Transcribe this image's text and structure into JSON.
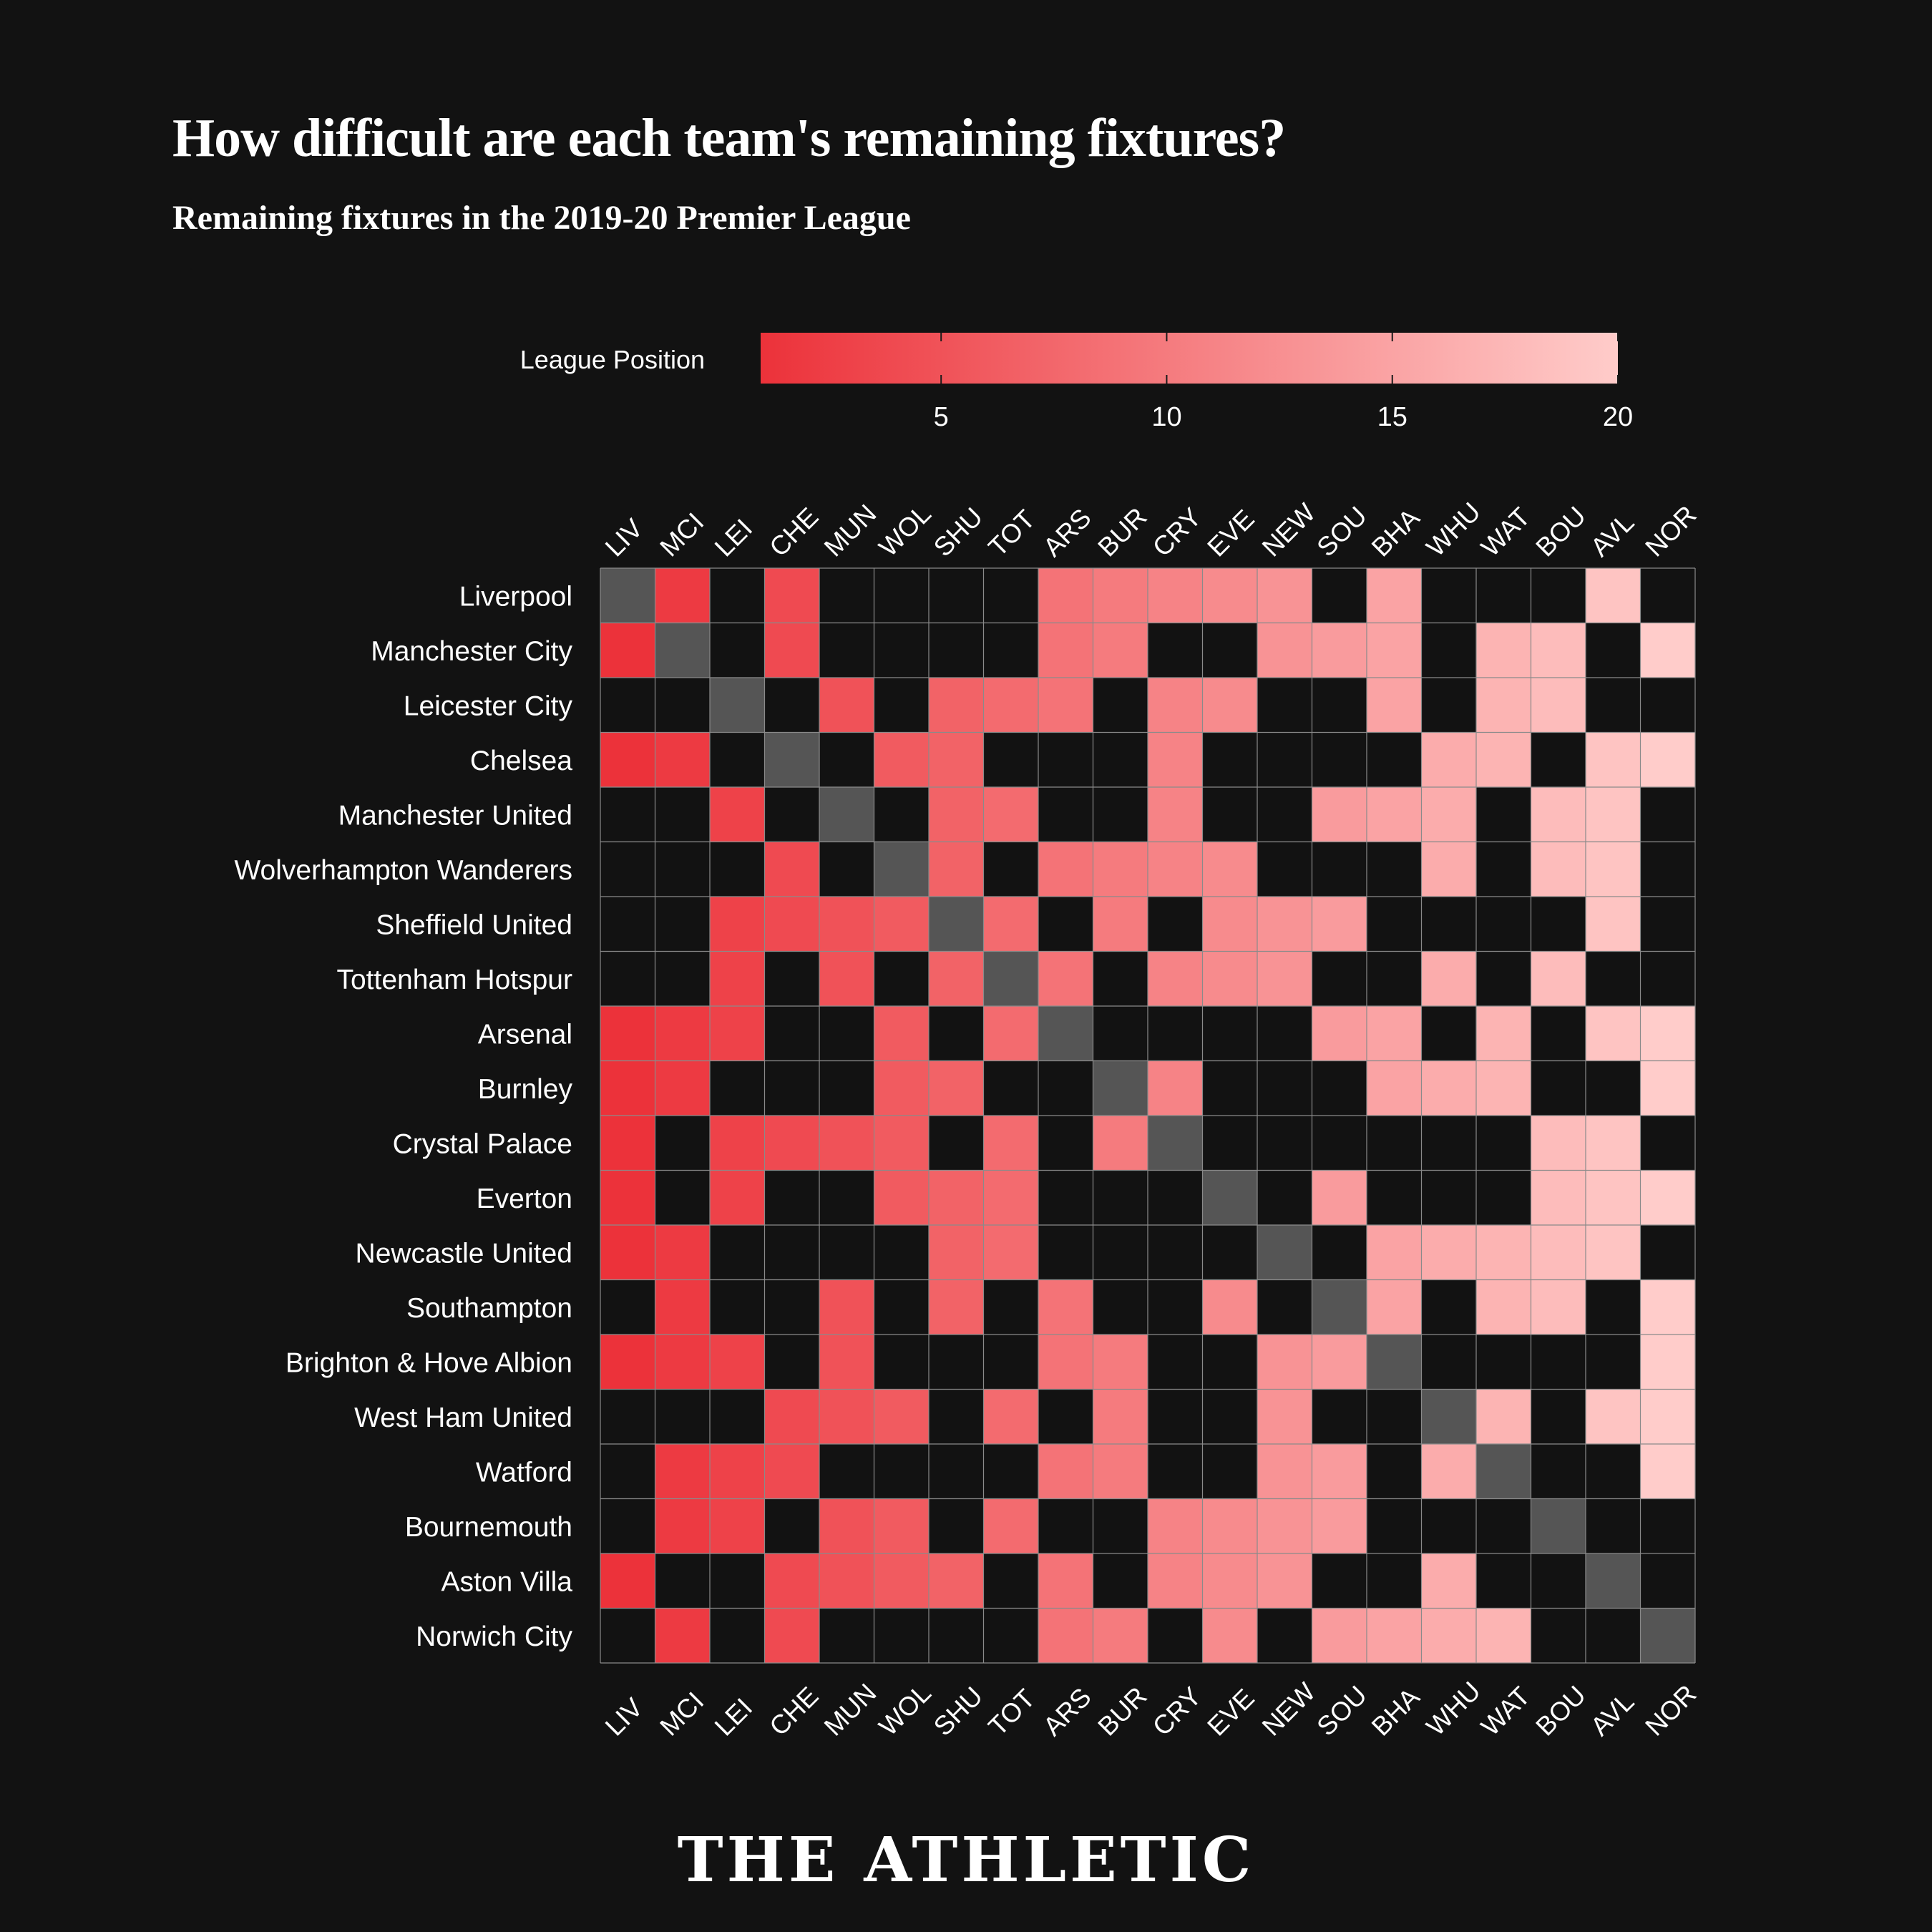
{
  "title": "How difficult are each team's remaining fixtures?",
  "subtitle": "Remaining fixtures in the 2019-20 Premier League",
  "brand": "THE ATHLETIC",
  "colors": {
    "background": "#121212",
    "no_fixture": "#121212",
    "self": "#555555",
    "scale_low": "#ec323a",
    "scale_high": "#ffccca",
    "grid": "#8a8a8a",
    "text": "#ffffff"
  },
  "chart_data": {
    "type": "heatmap",
    "legend": {
      "title": "League Position",
      "range": [
        1,
        20
      ],
      "ticks": [
        5,
        10,
        15,
        20
      ],
      "placement": "top-center"
    },
    "rows": [
      "Liverpool",
      "Manchester City",
      "Leicester City",
      "Chelsea",
      "Manchester United",
      "Wolverhampton Wanderers",
      "Sheffield United",
      "Tottenham Hotspur",
      "Arsenal",
      "Burnley",
      "Crystal Palace",
      "Everton",
      "Newcastle United",
      "Southampton",
      "Brighton & Hove Albion",
      "West Ham United",
      "Watford",
      "Bournemouth",
      "Aston Villa",
      "Norwich City"
    ],
    "columns": [
      "LIV",
      "MCI",
      "LEI",
      "CHE",
      "MUN",
      "WOL",
      "SHU",
      "TOT",
      "ARS",
      "BUR",
      "CRY",
      "EVE",
      "NEW",
      "SOU",
      "BHA",
      "WHU",
      "WAT",
      "BOU",
      "AVL",
      "NOR"
    ],
    "value_note": "cell value = league position of the opponent (1-20); 0 = no remaining fixture; -1 = team itself",
    "values": [
      [
        -1,
        2,
        0,
        4,
        0,
        0,
        0,
        0,
        9,
        10,
        11,
        12,
        13,
        0,
        15,
        0,
        0,
        0,
        19,
        0
      ],
      [
        1,
        -1,
        0,
        4,
        0,
        0,
        0,
        0,
        9,
        10,
        0,
        0,
        13,
        14,
        15,
        0,
        17,
        18,
        0,
        20
      ],
      [
        0,
        0,
        -1,
        0,
        5,
        0,
        7,
        8,
        9,
        0,
        11,
        12,
        0,
        0,
        15,
        0,
        17,
        18,
        0,
        0
      ],
      [
        1,
        2,
        0,
        -1,
        0,
        6,
        7,
        0,
        0,
        0,
        11,
        0,
        0,
        0,
        0,
        16,
        17,
        0,
        19,
        20
      ],
      [
        0,
        0,
        3,
        0,
        -1,
        0,
        7,
        8,
        0,
        0,
        11,
        0,
        0,
        14,
        15,
        16,
        0,
        18,
        19,
        0
      ],
      [
        0,
        0,
        0,
        4,
        0,
        -1,
        7,
        0,
        9,
        10,
        11,
        12,
        0,
        0,
        0,
        16,
        0,
        18,
        19,
        0
      ],
      [
        0,
        0,
        3,
        4,
        5,
        6,
        -1,
        8,
        0,
        10,
        0,
        12,
        13,
        14,
        0,
        0,
        0,
        0,
        19,
        0
      ],
      [
        0,
        0,
        3,
        0,
        5,
        0,
        7,
        -1,
        9,
        0,
        11,
        12,
        13,
        0,
        0,
        16,
        0,
        18,
        0,
        0
      ],
      [
        1,
        2,
        3,
        0,
        0,
        6,
        0,
        8,
        -1,
        0,
        0,
        0,
        0,
        14,
        15,
        0,
        17,
        0,
        19,
        20
      ],
      [
        1,
        2,
        0,
        0,
        0,
        6,
        7,
        0,
        0,
        -1,
        11,
        0,
        0,
        0,
        15,
        16,
        17,
        0,
        0,
        20
      ],
      [
        1,
        0,
        3,
        4,
        5,
        6,
        0,
        8,
        0,
        10,
        -1,
        0,
        0,
        0,
        0,
        0,
        0,
        18,
        19,
        0
      ],
      [
        1,
        0,
        3,
        0,
        0,
        6,
        7,
        8,
        0,
        0,
        0,
        -1,
        0,
        14,
        0,
        0,
        0,
        18,
        19,
        20
      ],
      [
        1,
        2,
        0,
        0,
        0,
        0,
        7,
        8,
        0,
        0,
        0,
        0,
        -1,
        0,
        15,
        16,
        17,
        18,
        19,
        0
      ],
      [
        0,
        2,
        0,
        0,
        5,
        0,
        7,
        0,
        9,
        0,
        0,
        12,
        0,
        -1,
        15,
        0,
        17,
        18,
        0,
        20
      ],
      [
        1,
        2,
        3,
        0,
        5,
        0,
        0,
        0,
        9,
        10,
        0,
        0,
        13,
        14,
        -1,
        0,
        0,
        0,
        0,
        20
      ],
      [
        0,
        0,
        0,
        4,
        5,
        6,
        0,
        8,
        0,
        10,
        0,
        0,
        13,
        0,
        0,
        -1,
        17,
        0,
        19,
        20
      ],
      [
        0,
        2,
        3,
        4,
        0,
        0,
        0,
        0,
        9,
        10,
        0,
        0,
        13,
        14,
        0,
        16,
        -1,
        0,
        0,
        20
      ],
      [
        0,
        2,
        3,
        0,
        5,
        6,
        0,
        8,
        0,
        0,
        11,
        12,
        13,
        14,
        0,
        0,
        0,
        -1,
        0,
        0
      ],
      [
        1,
        0,
        0,
        4,
        5,
        6,
        7,
        0,
        9,
        0,
        11,
        12,
        13,
        0,
        0,
        16,
        0,
        0,
        -1,
        0
      ],
      [
        0,
        2,
        0,
        4,
        0,
        0,
        0,
        0,
        9,
        10,
        0,
        12,
        0,
        14,
        15,
        16,
        17,
        0,
        0,
        -1
      ]
    ]
  }
}
